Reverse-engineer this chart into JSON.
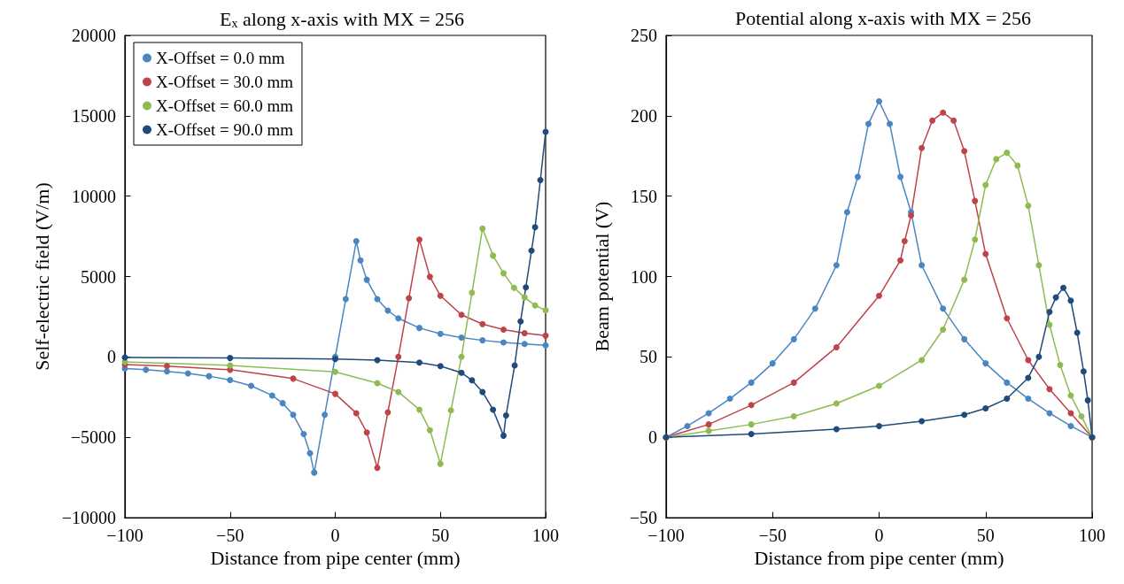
{
  "chart_data": [
    {
      "type": "line",
      "title": "E$_{x}$ along x-axis with MX = 256",
      "xlabel": "Distance from pipe center (mm)",
      "ylabel": "Self-electric field (V/m)",
      "xlim": [
        -100,
        100
      ],
      "xticks": [
        -100,
        -50,
        0,
        50,
        100
      ],
      "ylim": [
        -10000,
        20000
      ],
      "yticks": [
        -10000,
        -5000,
        0,
        5000,
        10000,
        15000,
        20000
      ],
      "grid": false,
      "legend": "top left",
      "marker": "circle",
      "series": [
        {
          "name": "X-Offset = 0.0 mm",
          "color": "#4a86c0",
          "x": [
            -100,
            -90,
            -80,
            -70,
            -60,
            -50,
            -40,
            -30,
            -25,
            -20,
            -15,
            -12,
            -10,
            -5,
            0,
            5,
            10,
            12,
            15,
            20,
            25,
            30,
            40,
            50,
            60,
            70,
            80,
            90,
            100
          ],
          "values": [
            -720,
            -800,
            -900,
            -1030,
            -1200,
            -1440,
            -1800,
            -2400,
            -2880,
            -3600,
            -4800,
            -6000,
            -7200,
            -3600,
            0,
            3600,
            7200,
            6000,
            4800,
            3600,
            2880,
            2400,
            1800,
            1440,
            1200,
            1030,
            900,
            800,
            720
          ]
        },
        {
          "name": "X-Offset = 30.0 mm",
          "color": "#bd444b",
          "x": [
            -100,
            -80,
            -50,
            -20,
            0,
            10,
            15,
            20,
            25,
            30,
            35,
            40,
            45,
            50,
            60,
            70,
            80,
            90,
            100
          ],
          "values": [
            -480,
            -570,
            -800,
            -1350,
            -2300,
            -3500,
            -4700,
            -6900,
            -3450,
            0,
            3650,
            7300,
            4980,
            3800,
            2620,
            2040,
            1700,
            1480,
            1320
          ]
        },
        {
          "name": "X-Offset = 60.0 mm",
          "color": "#8fbb52",
          "x": [
            -100,
            -50,
            0,
            20,
            30,
            40,
            45,
            50,
            55,
            60,
            65,
            70,
            75,
            80,
            85,
            90,
            95,
            100
          ],
          "values": [
            -310,
            -530,
            -930,
            -1630,
            -2180,
            -3280,
            -4560,
            -6650,
            -3330,
            0,
            3990,
            7980,
            6300,
            5200,
            4300,
            3700,
            3200,
            2900
          ]
        },
        {
          "name": "X-Offset = 90.0 mm",
          "color": "#1f4a7c",
          "x": [
            -100,
            -50,
            0,
            20,
            40,
            50,
            60,
            65,
            70,
            75,
            80,
            81.2,
            85.3,
            88.1,
            90.6,
            93.3,
            95,
            97.5,
            100
          ],
          "values": [
            -40,
            -70,
            -130,
            -200,
            -350,
            -570,
            -990,
            -1450,
            -2180,
            -3280,
            -4900,
            -3640,
            -530,
            2210,
            4330,
            6610,
            8070,
            11000,
            14000
          ]
        }
      ]
    },
    {
      "type": "line",
      "title": "Potential along x-axis with MX = 256",
      "xlabel": "Distance from pipe center (mm)",
      "ylabel": "Beam potential (V)",
      "xlim": [
        -100,
        100
      ],
      "xticks": [
        -100,
        -50,
        0,
        50,
        100
      ],
      "ylim": [
        -50,
        250
      ],
      "yticks": [
        -50,
        0,
        50,
        100,
        150,
        200,
        250
      ],
      "grid": false,
      "legend": false,
      "marker": "circle",
      "series": [
        {
          "color": "#4a86c0",
          "x": [
            -100,
            -90,
            -80,
            -70,
            -60,
            -50,
            -40,
            -30,
            -20,
            -15,
            -10,
            -5,
            0,
            5,
            10,
            15,
            20,
            30,
            40,
            50,
            60,
            70,
            80,
            90,
            100
          ],
          "values": [
            0,
            7,
            15,
            24,
            34,
            46,
            61,
            80,
            107,
            140,
            162,
            195,
            209,
            195,
            162,
            140,
            107,
            80,
            61,
            46,
            34,
            24,
            15,
            7,
            0
          ]
        },
        {
          "color": "#bd444b",
          "x": [
            -100,
            -80,
            -60,
            -40,
            -20,
            0,
            10,
            12,
            15,
            20,
            25,
            30,
            35,
            40,
            45,
            50,
            60,
            70,
            80,
            90,
            100
          ],
          "values": [
            0,
            8,
            20,
            34,
            56,
            88,
            110,
            122,
            138,
            180,
            197,
            202,
            197,
            178,
            147,
            114,
            74,
            48,
            30,
            15,
            0
          ]
        },
        {
          "color": "#8fbb52",
          "x": [
            -100,
            -80,
            -60,
            -40,
            -20,
            0,
            20,
            30,
            40,
            45,
            50,
            55,
            60,
            65,
            70,
            75,
            80,
            85,
            90,
            95,
            100
          ],
          "values": [
            0,
            4,
            8,
            13,
            21,
            32,
            48,
            67,
            98,
            123,
            157,
            173,
            177,
            169,
            144,
            107,
            70,
            45,
            26,
            13,
            0
          ]
        },
        {
          "color": "#1f4a7c",
          "x": [
            -100,
            -60,
            -20,
            0,
            20,
            40,
            50,
            60,
            70,
            75,
            80,
            83,
            86.5,
            90,
            93,
            96,
            98,
            100
          ],
          "values": [
            0,
            2,
            5,
            7,
            10,
            14,
            18,
            24,
            37,
            50,
            78,
            87,
            93,
            85,
            65,
            41,
            23,
            0
          ]
        }
      ]
    }
  ]
}
